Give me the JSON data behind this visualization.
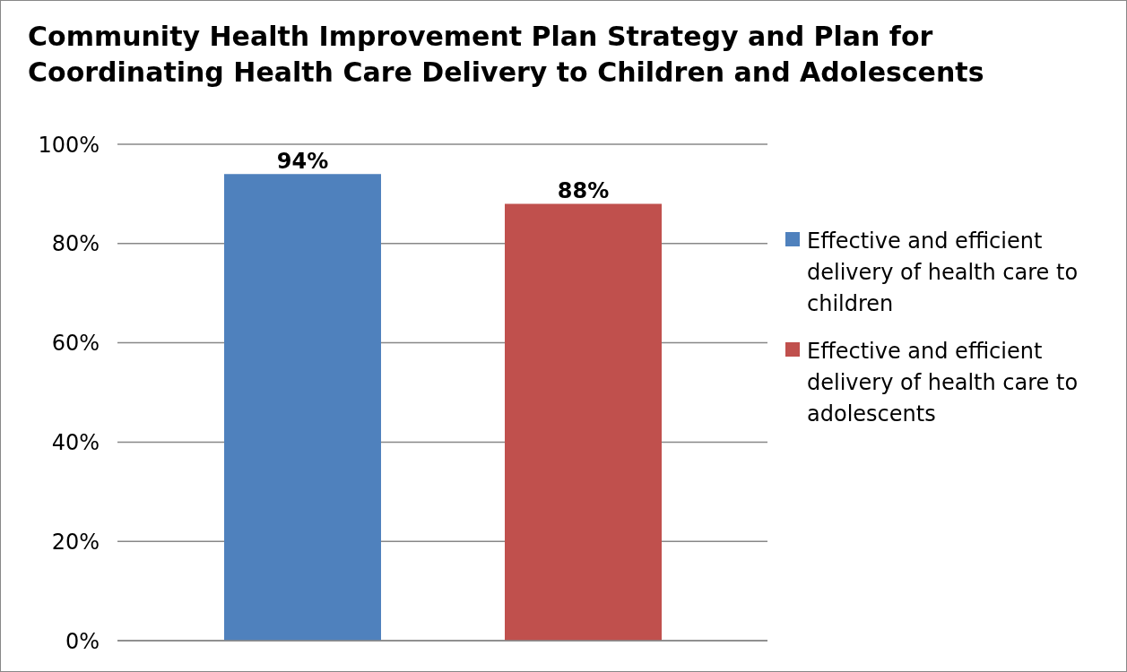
{
  "chart_data": {
    "type": "bar",
    "title": "Community Health Improvement Plan Strategy and Plan for Coordinating Health Care Delivery to Children and Adolescents",
    "categories": [
      null
    ],
    "series": [
      {
        "name": "Effective and efficient delivery of health care to children",
        "color": "#4f81bd",
        "values": [
          94
        ],
        "value_labels": [
          "94%"
        ]
      },
      {
        "name": "Effective and efficient delivery of health care to adolescents",
        "color": "#c0504d",
        "values": [
          88
        ],
        "value_labels": [
          "88%"
        ]
      }
    ],
    "ylim": [
      0,
      100
    ],
    "yticks": [
      {
        "value": 0,
        "label": "0%"
      },
      {
        "value": 20,
        "label": "20%"
      },
      {
        "value": 40,
        "label": "40%"
      },
      {
        "value": 60,
        "label": "60%"
      },
      {
        "value": 80,
        "label": "80%"
      },
      {
        "value": 100,
        "label": "100%"
      }
    ],
    "grid": "y",
    "legend": "right"
  }
}
